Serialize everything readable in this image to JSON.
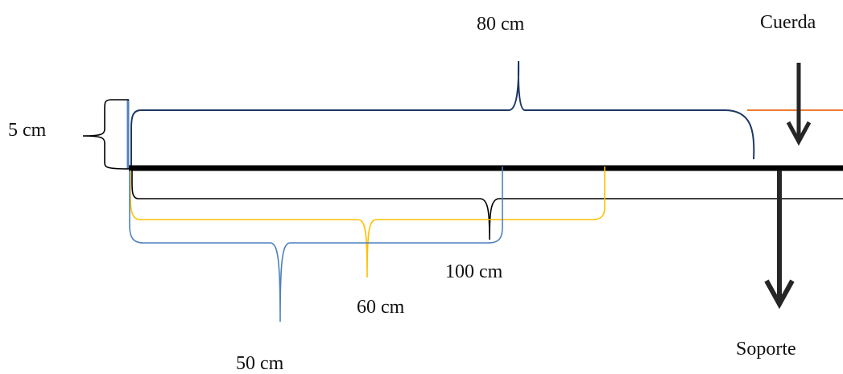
{
  "labels": {
    "dim_80": "80 cm",
    "dim_5": "5 cm",
    "dim_100": "100 cm",
    "dim_60": "60 cm",
    "dim_50": "50 cm",
    "rope": "Cuerda",
    "support": "Soporte"
  },
  "colors": {
    "bar_outline": "#000000",
    "support_line": "#000000",
    "rope_line": "#ed7d31",
    "brace_80": "#1f3864",
    "brace_100": "#000000",
    "brace_60": "#ffc000",
    "brace_50": "#4f81bd",
    "arrow": "#262626"
  }
}
